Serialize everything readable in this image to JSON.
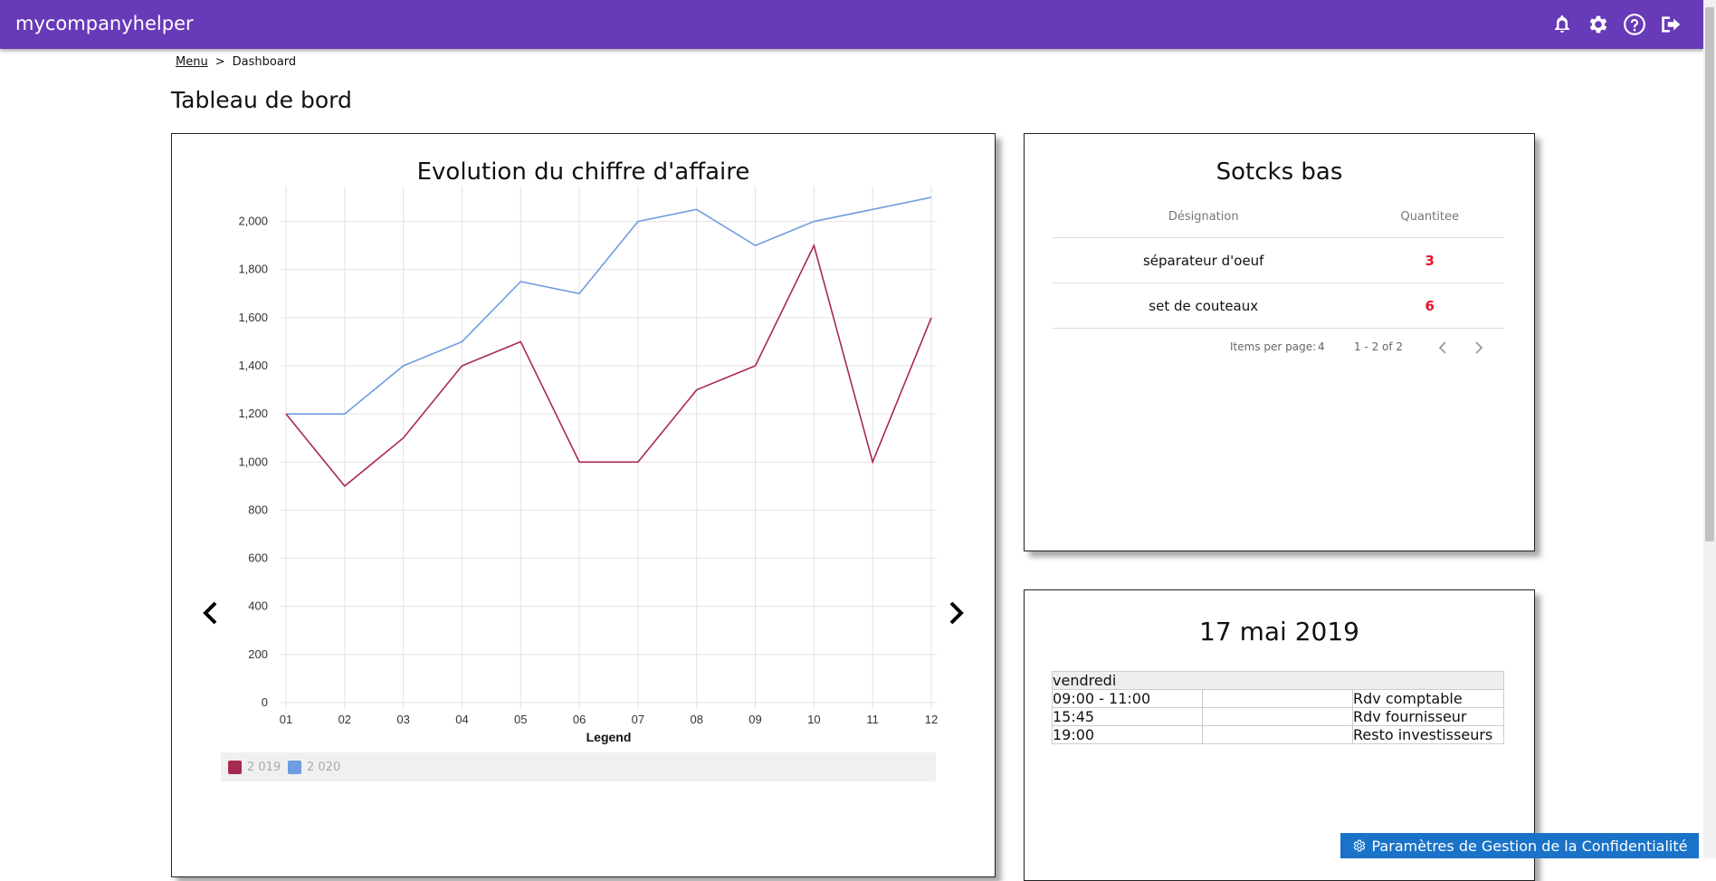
{
  "app": {
    "brand": "mycompanyhelper"
  },
  "topbar": {
    "icons": [
      "bell-icon",
      "gear-icon",
      "help-icon",
      "logout-icon"
    ]
  },
  "breadcrumb": {
    "menu_link": "Menu",
    "separator": ">",
    "current": "Dashboard"
  },
  "page": {
    "title": "Tableau de bord"
  },
  "revenue_card": {
    "title": "Evolution du chiffre d'affaire"
  },
  "chart_data": {
    "type": "line",
    "title": "Evolution du chiffre d'affaire",
    "xlabel": "Legend",
    "ylabel": "",
    "categories": [
      "01",
      "02",
      "03",
      "04",
      "05",
      "06",
      "07",
      "08",
      "09",
      "10",
      "11",
      "12"
    ],
    "ylim": [
      0,
      2100
    ],
    "yticks": [
      0,
      200,
      400,
      600,
      800,
      1000,
      1200,
      1400,
      1600,
      1800,
      2000
    ],
    "ytick_labels": [
      "0",
      "200",
      "400",
      "600",
      "800",
      "1,000",
      "1,200",
      "1,400",
      "1,600",
      "1,800",
      "2,000"
    ],
    "grid": true,
    "series": [
      {
        "name": "2 019",
        "color": "#a8294f",
        "values": [
          1200,
          900,
          1100,
          1400,
          1500,
          1000,
          1000,
          1300,
          1400,
          1900,
          1000,
          1600
        ]
      },
      {
        "name": "2 020",
        "color": "#6e9de0",
        "values": [
          1200,
          1200,
          1400,
          1500,
          1750,
          1700,
          2000,
          2050,
          1900,
          2000,
          2050,
          2100
        ]
      }
    ],
    "legend_position": "bottom"
  },
  "stock_card": {
    "title": "Sotcks bas",
    "columns": [
      "Désignation",
      "Quantitee"
    ],
    "rows": [
      {
        "designation": "séparateur d'oeuf",
        "quantity": "3"
      },
      {
        "designation": "set de couteaux",
        "quantity": "6"
      }
    ],
    "paginator": {
      "items_per_page_label": "Items per page:",
      "items_per_page": "4",
      "range": "1 - 2 of 2"
    }
  },
  "agenda_card": {
    "title": "17 mai 2019",
    "day": "vendredi",
    "events": [
      {
        "time": "09:00 - 11:00",
        "label": "Rdv comptable"
      },
      {
        "time": "15:45",
        "label": "Rdv fournisseur"
      },
      {
        "time": "19:00",
        "label": "Resto investisseurs"
      }
    ]
  },
  "privacy_button": {
    "label": "Paramètres de Gestion de la Confidentialité"
  }
}
